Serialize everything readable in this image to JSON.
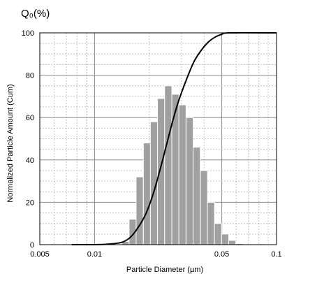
{
  "chart_data": {
    "type": "bar",
    "corner_label": "Q₀(%)",
    "xlabel": "Particle Diameter (µm)",
    "ylabel": "Normalized Particle Amount (Cum)",
    "x_scale": "log",
    "xlim": [
      0.005,
      0.1
    ],
    "ylim": [
      0,
      100
    ],
    "x_ticks": [
      {
        "value": 0.005,
        "label": "0.005"
      },
      {
        "value": 0.01,
        "label": "0.01"
      },
      {
        "value": 0.05,
        "label": "0.05"
      },
      {
        "value": 0.1,
        "label": "0.1"
      }
    ],
    "y_ticks": [
      {
        "value": 0,
        "label": "0"
      },
      {
        "value": 20,
        "label": "20"
      },
      {
        "value": 40,
        "label": "40"
      },
      {
        "value": 60,
        "label": "60"
      },
      {
        "value": 80,
        "label": "80"
      },
      {
        "value": 100,
        "label": "100"
      }
    ],
    "grid": true,
    "series": [
      {
        "type": "bar",
        "color": "#a0a0a0",
        "points": [
          {
            "x": 0.0148,
            "y": 1.5
          },
          {
            "x": 0.0162,
            "y": 12
          },
          {
            "x": 0.0177,
            "y": 32
          },
          {
            "x": 0.0194,
            "y": 48
          },
          {
            "x": 0.0212,
            "y": 58
          },
          {
            "x": 0.0232,
            "y": 69
          },
          {
            "x": 0.0254,
            "y": 75
          },
          {
            "x": 0.0278,
            "y": 71
          },
          {
            "x": 0.0304,
            "y": 66
          },
          {
            "x": 0.0333,
            "y": 60
          },
          {
            "x": 0.0364,
            "y": 46
          },
          {
            "x": 0.0399,
            "y": 35
          },
          {
            "x": 0.0436,
            "y": 20
          },
          {
            "x": 0.0477,
            "y": 10
          },
          {
            "x": 0.0522,
            "y": 5
          },
          {
            "x": 0.0571,
            "y": 2
          },
          {
            "x": 0.0625,
            "y": 0.5
          }
        ]
      },
      {
        "type": "line",
        "color": "#000000",
        "points": [
          {
            "x": 0.0075,
            "y": 0
          },
          {
            "x": 0.01,
            "y": 0
          },
          {
            "x": 0.012,
            "y": 0.3
          },
          {
            "x": 0.014,
            "y": 1
          },
          {
            "x": 0.0155,
            "y": 3
          },
          {
            "x": 0.017,
            "y": 7
          },
          {
            "x": 0.019,
            "y": 14
          },
          {
            "x": 0.021,
            "y": 24
          },
          {
            "x": 0.023,
            "y": 36
          },
          {
            "x": 0.025,
            "y": 48
          },
          {
            "x": 0.027,
            "y": 59
          },
          {
            "x": 0.029,
            "y": 68
          },
          {
            "x": 0.032,
            "y": 78
          },
          {
            "x": 0.035,
            "y": 86
          },
          {
            "x": 0.038,
            "y": 91
          },
          {
            "x": 0.042,
            "y": 95.5
          },
          {
            "x": 0.046,
            "y": 98
          },
          {
            "x": 0.05,
            "y": 99.3
          },
          {
            "x": 0.055,
            "y": 100
          },
          {
            "x": 0.1,
            "y": 100
          }
        ]
      }
    ]
  }
}
